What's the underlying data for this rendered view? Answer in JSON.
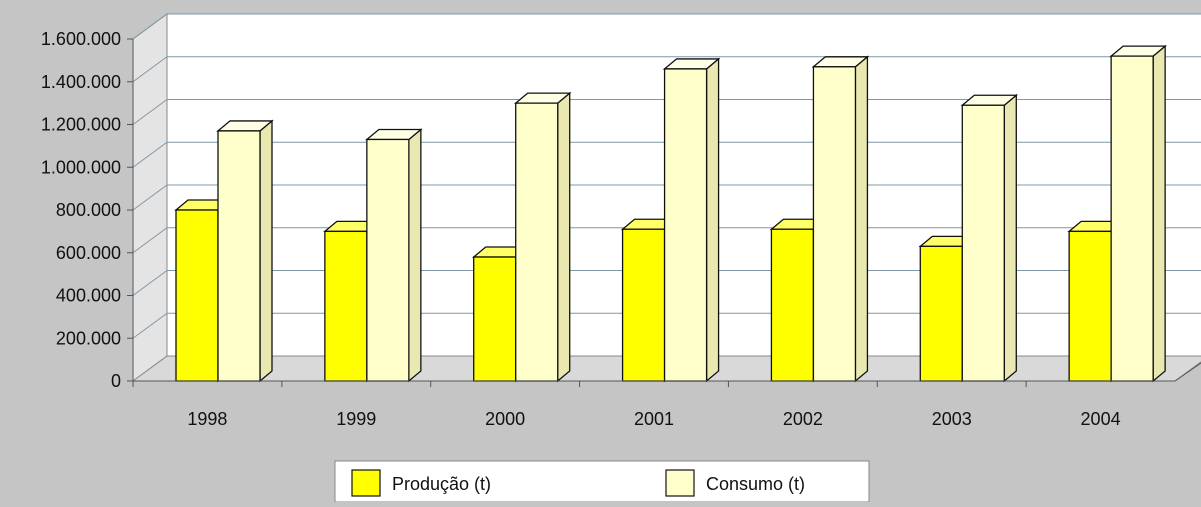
{
  "chart_data": {
    "type": "bar",
    "title": "",
    "xlabel": "",
    "ylabel": "",
    "categories": [
      "1998",
      "1999",
      "2000",
      "2001",
      "2002",
      "2003",
      "2004"
    ],
    "series": [
      {
        "name": "Produção (t)",
        "values": [
          800000,
          700000,
          580000,
          710000,
          710000,
          630000,
          700000
        ]
      },
      {
        "name": "Consumo (t)",
        "values": [
          1170000,
          1130000,
          1300000,
          1460000,
          1470000,
          1290000,
          1520000
        ]
      }
    ],
    "ylim": [
      0,
      1600000
    ],
    "yticks": [
      "0",
      "200.000",
      "400.000",
      "600.000",
      "800.000",
      "1.000.000",
      "1.200.000",
      "1.400.000",
      "1.600.000"
    ],
    "grid": true,
    "legend_position": "bottom",
    "colors": {
      "background": "#c5c5c5",
      "plot_wall": "#ffffff",
      "floor": "#d9d9d9",
      "producao_front": "#ffff00",
      "producao_top": "#ffff66",
      "producao_side": "#d8d800",
      "consumo_front": "#ffffcc",
      "consumo_top": "#ffffe6",
      "consumo_side": "#e8e8b0"
    }
  }
}
